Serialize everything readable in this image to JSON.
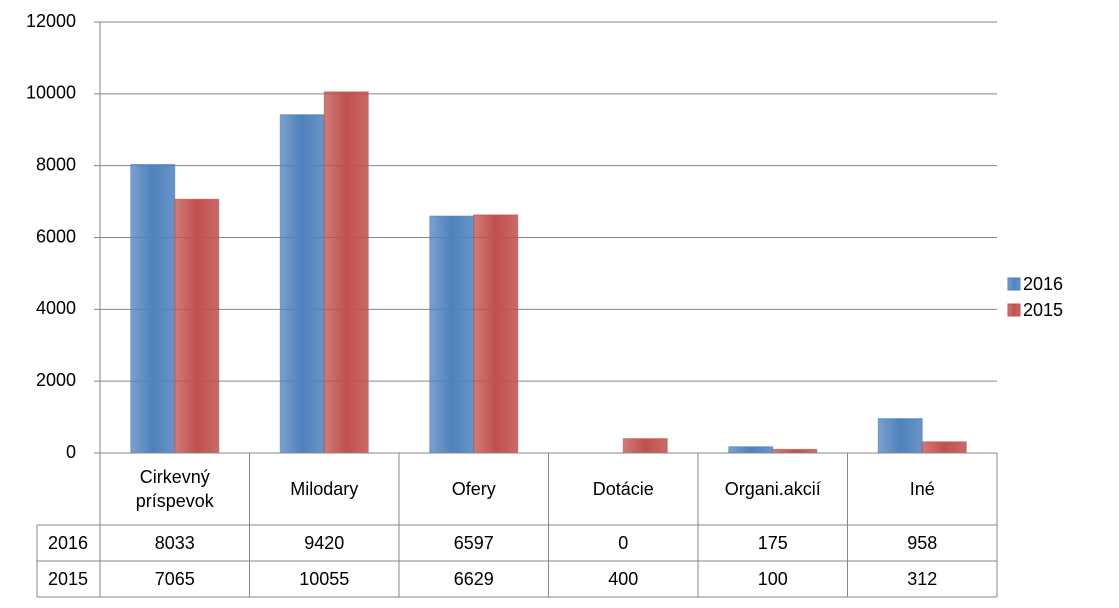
{
  "chart_data": {
    "type": "bar",
    "categories": [
      "Cirkevný príspevok",
      "Milodary",
      "Ofery",
      "Dotácie",
      "Organi.akcií",
      "Iné"
    ],
    "series": [
      {
        "name": "2016",
        "color": "#4f81bd",
        "values": [
          8033,
          9420,
          6597,
          0,
          175,
          958
        ]
      },
      {
        "name": "2015",
        "color": "#c0504d",
        "values": [
          7065,
          10055,
          6629,
          400,
          100,
          312
        ]
      }
    ],
    "ylim": [
      0,
      12000
    ],
    "yticks": [
      0,
      2000,
      4000,
      6000,
      8000,
      10000,
      12000
    ],
    "grid": true,
    "legend": "right",
    "data_table": true
  }
}
